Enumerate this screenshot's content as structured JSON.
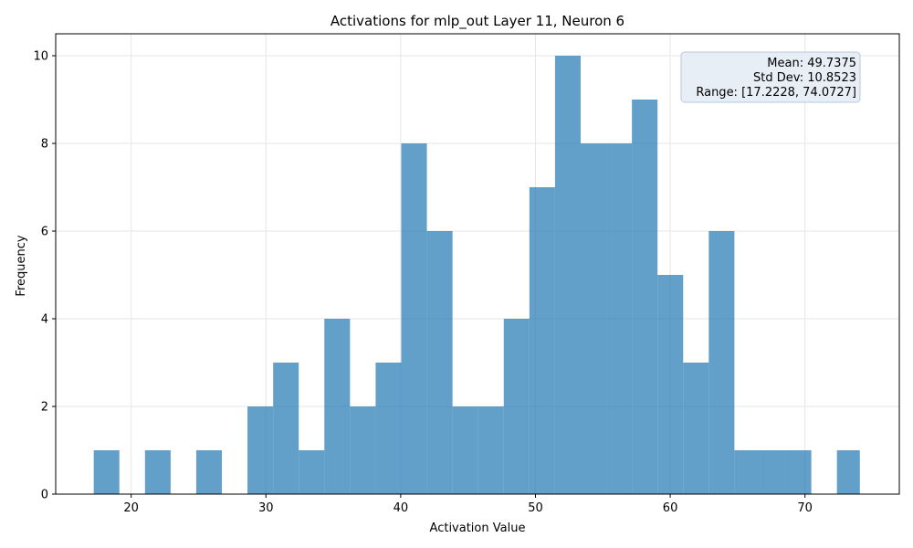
{
  "chart_data": {
    "type": "histogram",
    "title": "Activations for mlp_out Layer 11, Neuron 6",
    "xlabel": "Activation Value",
    "ylabel": "Frequency",
    "xlim": [
      14.4,
      77.0
    ],
    "ylim": [
      0,
      10.5
    ],
    "x_ticks": [
      20,
      30,
      40,
      50,
      60,
      70
    ],
    "y_ticks": [
      0,
      2,
      4,
      6,
      8,
      10
    ],
    "grid": true,
    "bar_color": "#1f77b4",
    "bar_opacity": 0.7,
    "bins": [
      {
        "x0": 17.2228,
        "x1": 19.1244,
        "count": 1
      },
      {
        "x0": 19.1244,
        "x1": 21.026,
        "count": 0
      },
      {
        "x0": 21.026,
        "x1": 22.9277,
        "count": 1
      },
      {
        "x0": 22.9277,
        "x1": 24.8293,
        "count": 0
      },
      {
        "x0": 24.8293,
        "x1": 26.7311,
        "count": 1
      },
      {
        "x0": 26.7311,
        "x1": 28.6327,
        "count": 0
      },
      {
        "x0": 28.6327,
        "x1": 30.5344,
        "count": 2
      },
      {
        "x0": 30.5344,
        "x1": 32.436,
        "count": 3
      },
      {
        "x0": 32.436,
        "x1": 34.3377,
        "count": 1
      },
      {
        "x0": 34.3377,
        "x1": 36.2393,
        "count": 4
      },
      {
        "x0": 36.2393,
        "x1": 38.141,
        "count": 2
      },
      {
        "x0": 38.141,
        "x1": 40.0427,
        "count": 3
      },
      {
        "x0": 40.0427,
        "x1": 41.9443,
        "count": 8
      },
      {
        "x0": 41.9443,
        "x1": 43.846,
        "count": 6
      },
      {
        "x0": 43.846,
        "x1": 45.7476,
        "count": 2
      },
      {
        "x0": 45.7476,
        "x1": 47.6493,
        "count": 2
      },
      {
        "x0": 47.6493,
        "x1": 49.551,
        "count": 4
      },
      {
        "x0": 49.551,
        "x1": 51.4526,
        "count": 7
      },
      {
        "x0": 51.4526,
        "x1": 53.3543,
        "count": 10
      },
      {
        "x0": 53.3543,
        "x1": 55.2559,
        "count": 8
      },
      {
        "x0": 55.2559,
        "x1": 57.1576,
        "count": 8
      },
      {
        "x0": 57.1576,
        "x1": 59.0593,
        "count": 9
      },
      {
        "x0": 59.0593,
        "x1": 60.9609,
        "count": 5
      },
      {
        "x0": 60.9609,
        "x1": 62.8626,
        "count": 3
      },
      {
        "x0": 62.8626,
        "x1": 64.7642,
        "count": 6
      },
      {
        "x0": 64.7642,
        "x1": 66.6659,
        "count": 1
      },
      {
        "x0": 66.6659,
        "x1": 68.5676,
        "count": 1
      },
      {
        "x0": 68.5676,
        "x1": 70.4692,
        "count": 1
      },
      {
        "x0": 70.4692,
        "x1": 72.3709,
        "count": 0
      },
      {
        "x0": 72.3709,
        "x1": 74.0727,
        "count": 1
      }
    ],
    "stats": {
      "mean_label": "Mean: 49.7375",
      "std_label": "Std Dev: 10.8523",
      "range_label": "Range: [17.2228, 74.0727]"
    },
    "stats_box_fill": "#e8eef6",
    "stats_box_stroke": "#b8c8dc"
  }
}
